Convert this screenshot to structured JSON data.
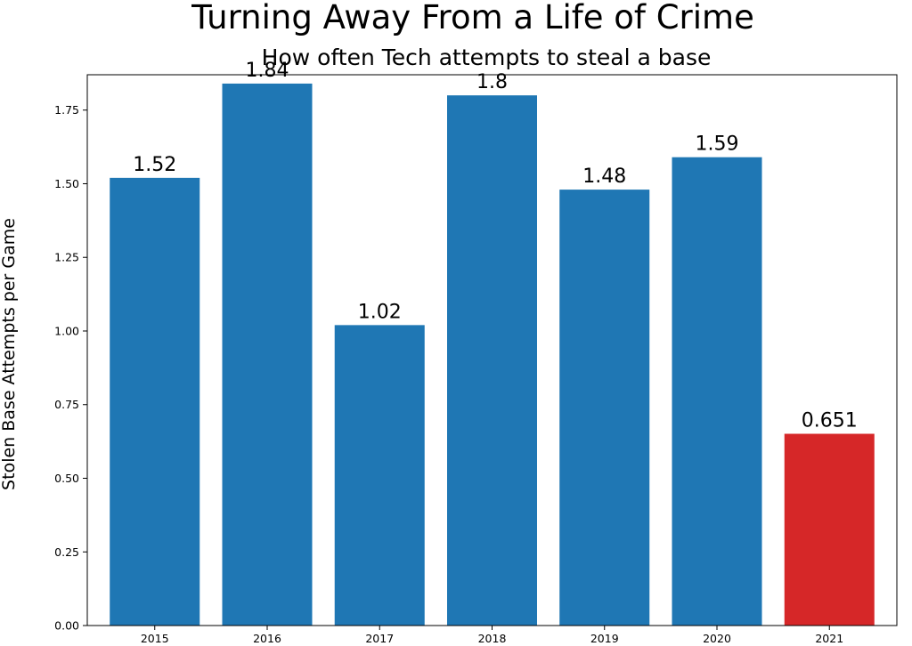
{
  "chart_data": {
    "type": "bar",
    "title": "Turning Away From a Life of Crime",
    "subtitle": "How often Tech attempts to steal a base",
    "xlabel": "",
    "ylabel": "Stolen Base Attempts per Game",
    "categories": [
      "2015",
      "2016",
      "2017",
      "2018",
      "2019",
      "2020",
      "2021"
    ],
    "values": [
      1.52,
      1.84,
      1.02,
      1.8,
      1.48,
      1.59,
      0.651
    ],
    "data_labels": [
      "1.52",
      "1.84",
      "1.02",
      "1.8",
      "1.48",
      "1.59",
      "0.651"
    ],
    "bar_colors": [
      "#1f77b4",
      "#1f77b4",
      "#1f77b4",
      "#1f77b4",
      "#1f77b4",
      "#1f77b4",
      "#d62728"
    ],
    "ylim": [
      0,
      1.87
    ],
    "yticks": [
      0.0,
      0.25,
      0.5,
      0.75,
      1.0,
      1.25,
      1.5,
      1.75
    ],
    "ytick_labels": [
      "0.00",
      "0.25",
      "0.50",
      "0.75",
      "1.00",
      "1.25",
      "1.50",
      "1.75"
    ],
    "grid": false,
    "legend": "none"
  }
}
